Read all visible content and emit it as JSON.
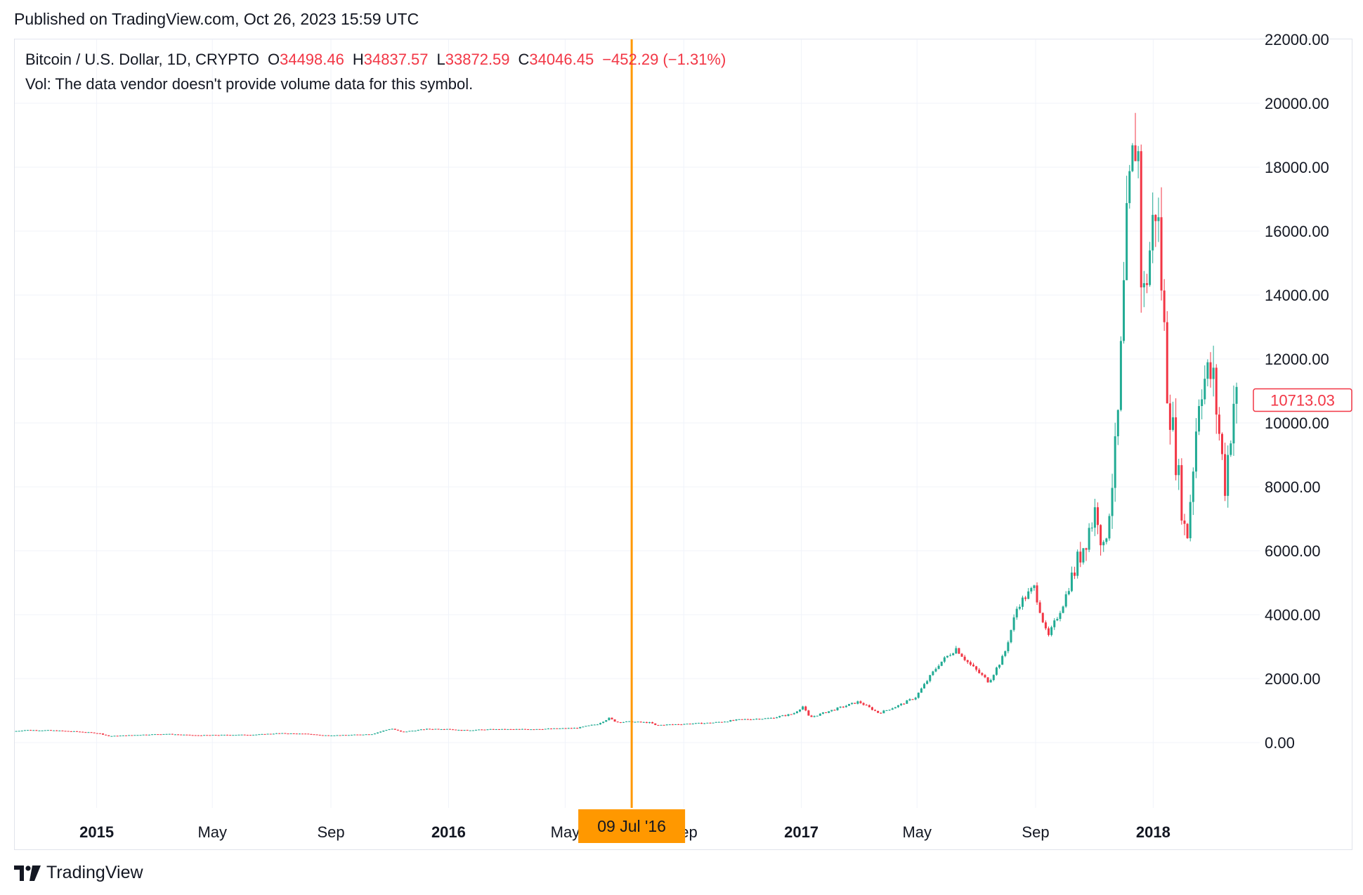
{
  "published": "Published on TradingView.com, Oct 26, 2023 15:59 UTC",
  "legend": {
    "symbol": "Bitcoin / U.S. Dollar, 1D, CRYPTO",
    "o_label": "O",
    "o_value": "34498.46",
    "h_label": "H",
    "h_value": "34837.57",
    "l_label": "L",
    "l_value": "33872.59",
    "c_label": "C",
    "c_value": "34046.45",
    "change": "−452.29 (−1.31%)",
    "vol": "Vol: The data vendor doesn't provide volume data for this symbol."
  },
  "brand": {
    "name": "TradingView",
    "icon": "tradingview-logo-icon"
  },
  "colors": {
    "up": "#22ab94",
    "down": "#f23645",
    "crosshair": "#ff9800",
    "grid": "#f0f3fa",
    "text": "#131722"
  },
  "chart_data": {
    "type": "candlestick",
    "title": "Bitcoin / U.S. Dollar, 1D, CRYPTO",
    "ylim": [
      -2000,
      22000
    ],
    "y_ticks": [
      0,
      2000,
      4000,
      6000,
      8000,
      10000,
      12000,
      14000,
      16000,
      18000,
      20000,
      22000
    ],
    "y_tick_labels": [
      "0.00",
      "2000.00",
      "4000.00",
      "6000.00",
      "8000.00",
      "10000.00",
      "12000.00",
      "14000.00",
      "16000.00",
      "18000.00",
      "20000.00",
      "22000.00"
    ],
    "x_range": [
      "2014-10-08",
      "2018-03-27"
    ],
    "x_ticks": [
      {
        "date": "2015-01-01",
        "label": "2015",
        "bold": true
      },
      {
        "date": "2015-05-01",
        "label": "May",
        "bold": false
      },
      {
        "date": "2015-09-01",
        "label": "Sep",
        "bold": false
      },
      {
        "date": "2016-01-01",
        "label": "2016",
        "bold": true
      },
      {
        "date": "2016-05-01",
        "label": "May",
        "bold": false
      },
      {
        "date": "2016-09-01",
        "label": "Sep",
        "bold": false
      },
      {
        "date": "2017-01-01",
        "label": "2017",
        "bold": true
      },
      {
        "date": "2017-05-01",
        "label": "May",
        "bold": false
      },
      {
        "date": "2017-09-01",
        "label": "Sep",
        "bold": false
      },
      {
        "date": "2018-01-01",
        "label": "2018",
        "bold": true
      }
    ],
    "crosshair": {
      "date": "2016-07-09",
      "label": "09 Jul '16"
    },
    "last_price": {
      "value": 10713.03,
      "label": "10713.03"
    },
    "grid": true,
    "price_path": [
      [
        "2014-10-08",
        350
      ],
      [
        "2014-10-20",
        390
      ],
      [
        "2014-11-15",
        380
      ],
      [
        "2014-12-15",
        340
      ],
      [
        "2015-01-05",
        290
      ],
      [
        "2015-01-15",
        200
      ],
      [
        "2015-02-15",
        240
      ],
      [
        "2015-03-15",
        270
      ],
      [
        "2015-04-15",
        225
      ],
      [
        "2015-05-15",
        238
      ],
      [
        "2015-06-15",
        245
      ],
      [
        "2015-07-10",
        290
      ],
      [
        "2015-08-10",
        270
      ],
      [
        "2015-08-25",
        225
      ],
      [
        "2015-09-15",
        230
      ],
      [
        "2015-10-15",
        265
      ],
      [
        "2015-11-04",
        440
      ],
      [
        "2015-11-15",
        330
      ],
      [
        "2015-12-10",
        420
      ],
      [
        "2016-01-01",
        430
      ],
      [
        "2016-01-15",
        380
      ],
      [
        "2016-02-15",
        410
      ],
      [
        "2016-03-15",
        415
      ],
      [
        "2016-04-15",
        430
      ],
      [
        "2016-05-15",
        455
      ],
      [
        "2016-06-05",
        580
      ],
      [
        "2016-06-17",
        760
      ],
      [
        "2016-06-25",
        640
      ],
      [
        "2016-07-09",
        650
      ],
      [
        "2016-07-31",
        620
      ],
      [
        "2016-08-03",
        540
      ],
      [
        "2016-09-01",
        580
      ],
      [
        "2016-10-01",
        615
      ],
      [
        "2016-11-01",
        720
      ],
      [
        "2016-12-01",
        760
      ],
      [
        "2016-12-25",
        900
      ],
      [
        "2017-01-04",
        1130
      ],
      [
        "2017-01-11",
        780
      ],
      [
        "2017-02-01",
        990
      ],
      [
        "2017-03-03",
        1280
      ],
      [
        "2017-03-24",
        920
      ],
      [
        "2017-04-15",
        1180
      ],
      [
        "2017-05-01",
        1420
      ],
      [
        "2017-05-25",
        2450
      ],
      [
        "2017-06-12",
        2950
      ],
      [
        "2017-06-25",
        2480
      ],
      [
        "2017-07-16",
        1900
      ],
      [
        "2017-08-01",
        2750
      ],
      [
        "2017-08-15",
        4300
      ],
      [
        "2017-09-01",
        4850
      ],
      [
        "2017-09-15",
        3250
      ],
      [
        "2017-10-01",
        4350
      ],
      [
        "2017-10-20",
        6000
      ],
      [
        "2017-11-05",
        7400
      ],
      [
        "2017-11-12",
        5900
      ],
      [
        "2017-11-26",
        9500
      ],
      [
        "2017-12-07",
        16500
      ],
      [
        "2017-12-17",
        19500
      ],
      [
        "2017-12-22",
        13500
      ],
      [
        "2018-01-06",
        17100
      ],
      [
        "2018-01-17",
        11200
      ],
      [
        "2018-02-06",
        6200
      ],
      [
        "2018-02-20",
        11300
      ],
      [
        "2018-03-05",
        11500
      ],
      [
        "2018-03-18",
        8100
      ],
      [
        "2018-03-27",
        10713
      ]
    ]
  }
}
